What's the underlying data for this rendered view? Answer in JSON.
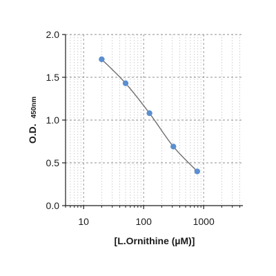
{
  "chart_data": {
    "type": "scatter",
    "xlabel": "[L.Ornithine (µM)]",
    "ylabel_main": "O.D.",
    "ylabel_sub": "450nm",
    "x_scale": "log",
    "xlim": [
      5,
      4500
    ],
    "ylim": [
      0,
      2.0
    ],
    "x_ticks": [
      10,
      100,
      1000
    ],
    "x_tick_labels": [
      "10",
      "100",
      "1000"
    ],
    "y_ticks": [
      0,
      0.5,
      1.0,
      1.5,
      2.0
    ],
    "y_tick_labels": [
      "0.0",
      "0.5",
      "1.0",
      "1.5",
      "2.0"
    ],
    "grid": true,
    "series": [
      {
        "x": [
          20,
          50,
          125,
          312.5,
          781
        ],
        "y": [
          1.71,
          1.43,
          1.08,
          0.69,
          0.4
        ],
        "marker_color": "#5b8fd0",
        "line_color": "#6e6e6e"
      }
    ]
  }
}
